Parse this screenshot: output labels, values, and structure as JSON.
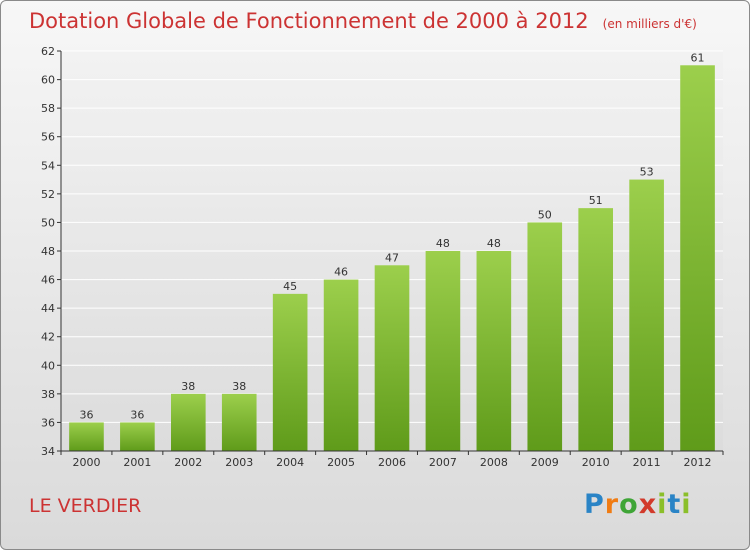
{
  "header": {
    "title": "Dotation Globale de Fonctionnement de 2000 à 2012",
    "unit": "(en milliers d'€)"
  },
  "footer": {
    "commune": "LE VERDIER",
    "logo_text": "Proxiti"
  },
  "colors": {
    "title": "#cc3333",
    "bar_top": "#9ccf4c",
    "bar_bottom": "#5f9b1a",
    "axis": "#333333",
    "grid": "#ffffff"
  },
  "chart_data": {
    "type": "bar",
    "title": "Dotation Globale de Fonctionnement de 2000 à 2012",
    "subtitle": "(en milliers d'€)",
    "xlabel": "",
    "ylabel": "",
    "categories": [
      "2000",
      "2001",
      "2002",
      "2003",
      "2004",
      "2005",
      "2006",
      "2007",
      "2008",
      "2009",
      "2010",
      "2011",
      "2012"
    ],
    "values": [
      36,
      36,
      38,
      38,
      45,
      46,
      47,
      48,
      48,
      50,
      51,
      53,
      61
    ],
    "ylim": [
      34,
      62
    ],
    "yticks": [
      34,
      36,
      38,
      40,
      42,
      44,
      46,
      48,
      50,
      52,
      54,
      56,
      58,
      60,
      62
    ],
    "grid": "horizontal",
    "data_labels": true
  }
}
